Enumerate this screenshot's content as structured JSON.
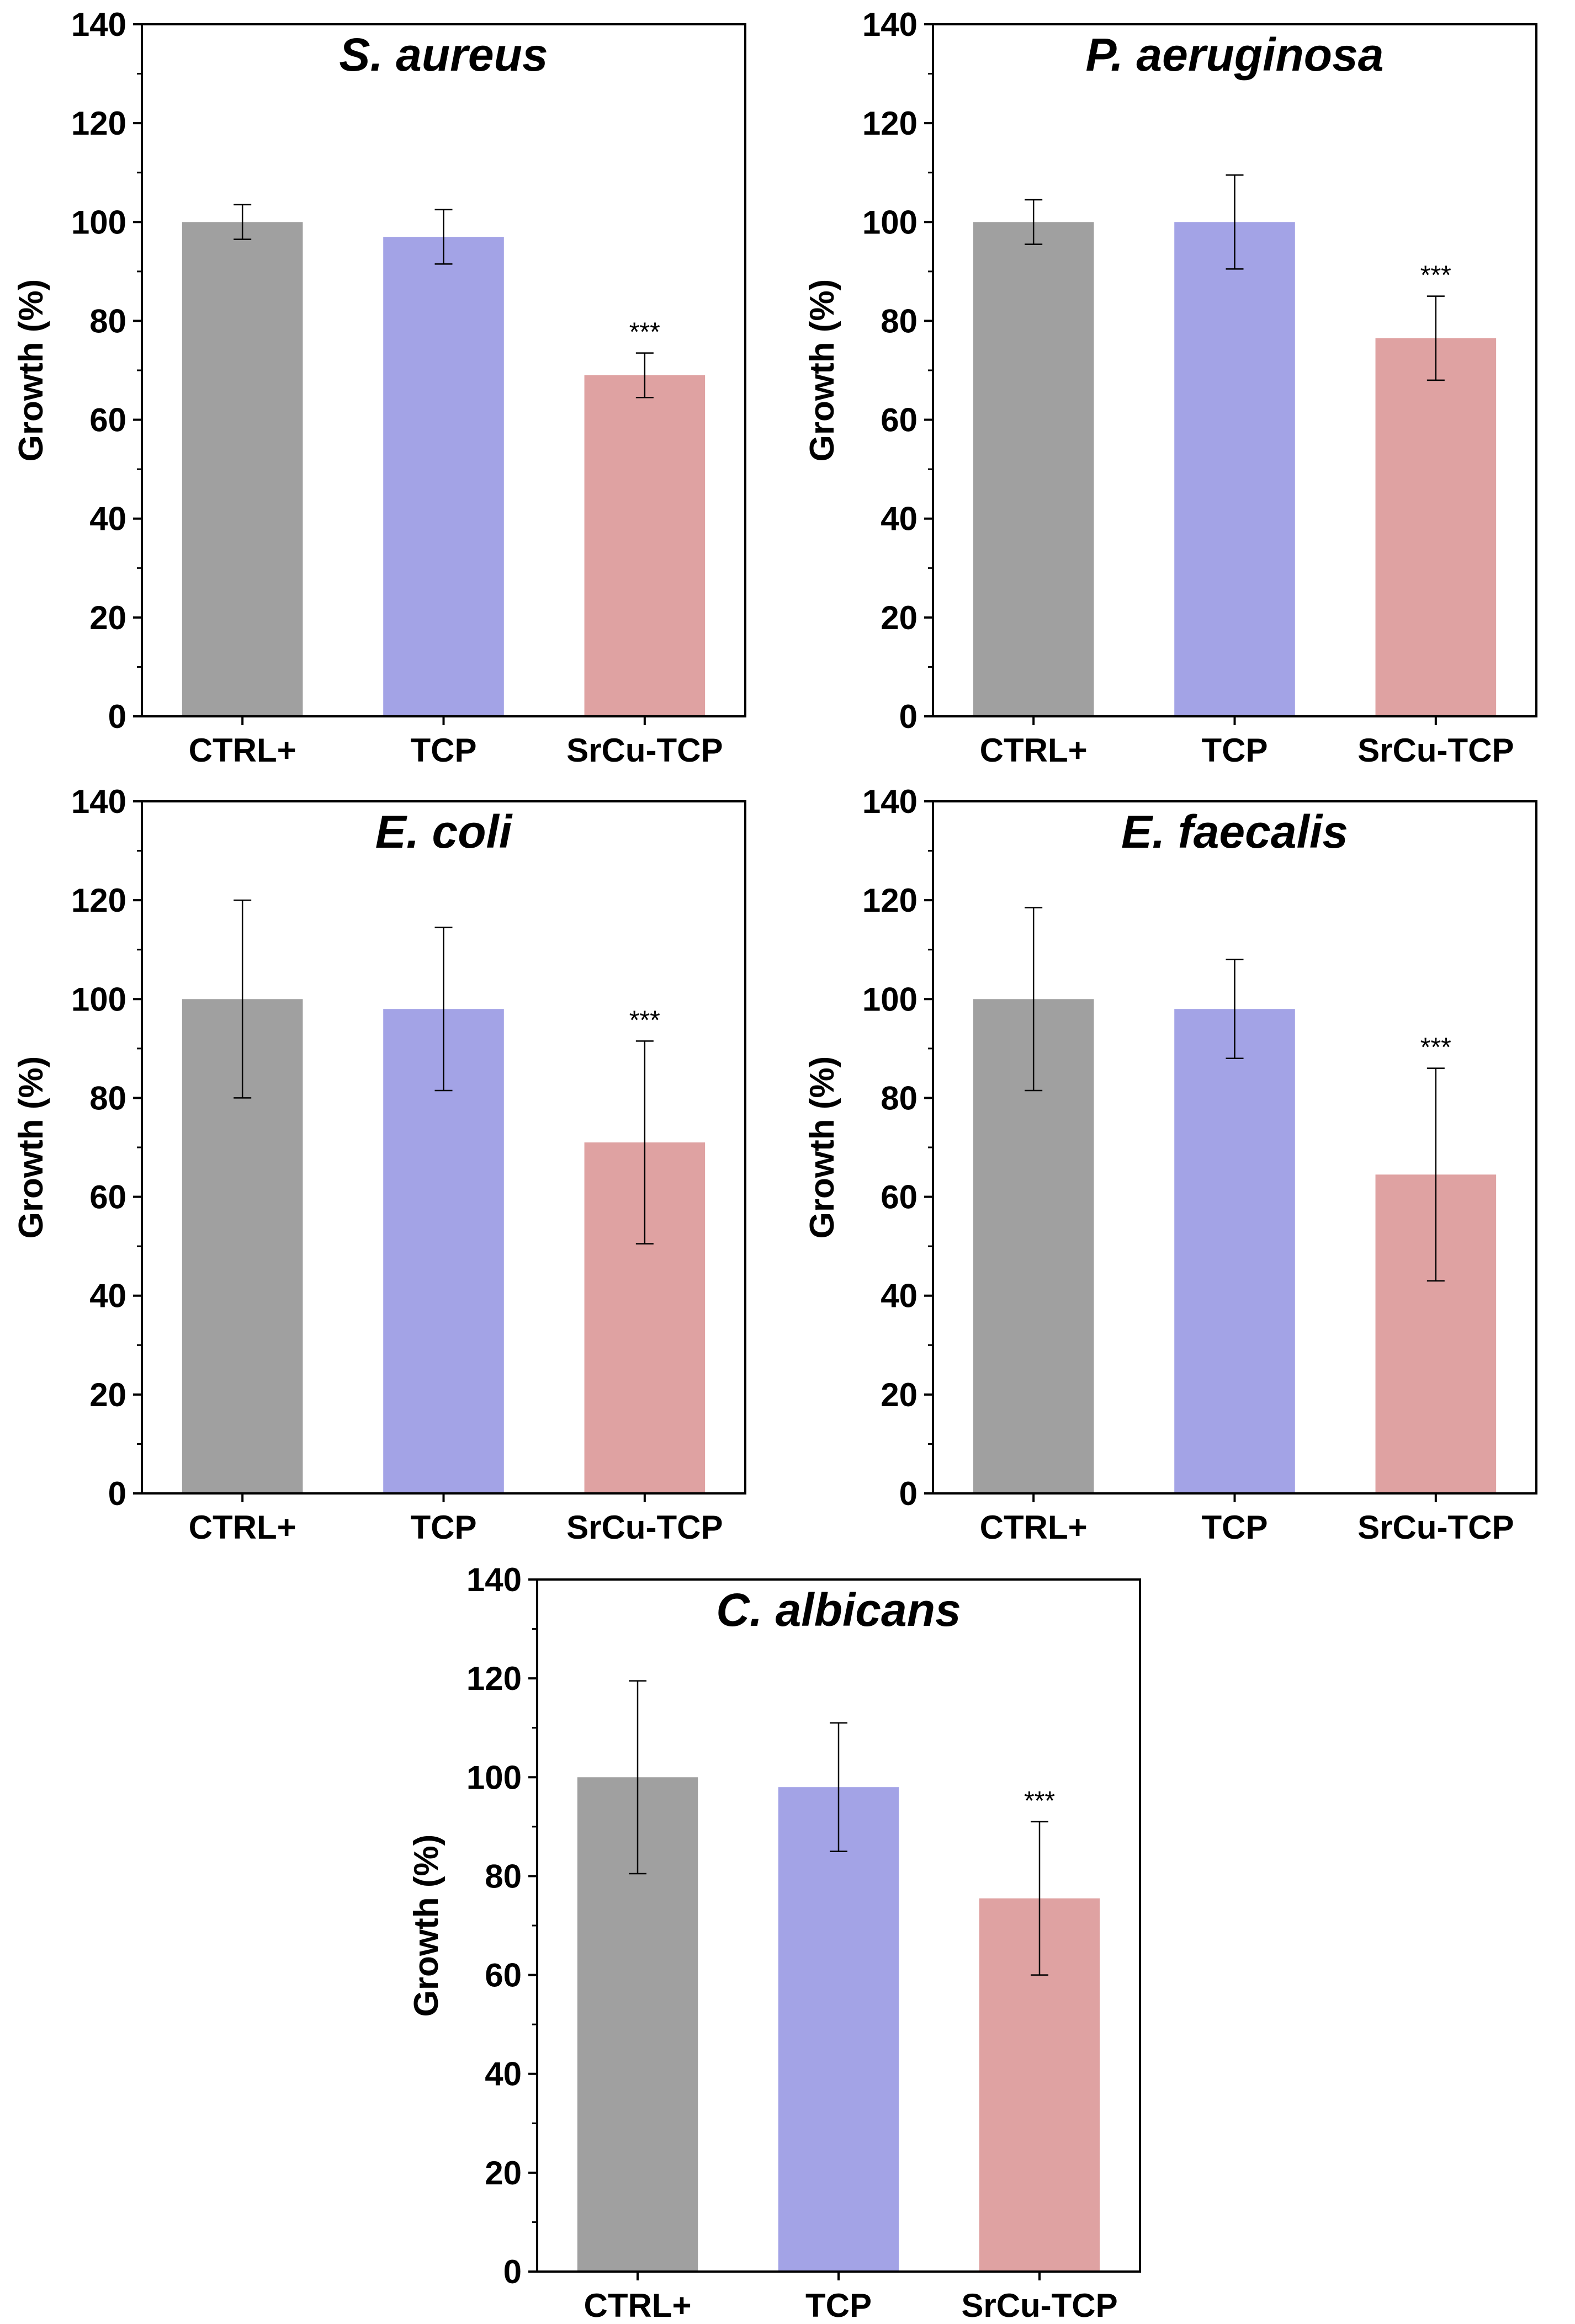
{
  "chart_data": [
    {
      "type": "bar",
      "title": "S. aureus",
      "categories": [
        "CTRL+",
        "TCP",
        "SrCu-TCP"
      ],
      "values": [
        100,
        97,
        69
      ],
      "errors": [
        3.5,
        5.5,
        4.5
      ],
      "annotations": [
        "",
        "",
        "***"
      ],
      "colors": [
        "#a0a0a0",
        "#a3a3e6",
        "#dfa2a2"
      ],
      "xlabel": "",
      "ylabel": "Growth (%)",
      "ylim": [
        0,
        140
      ],
      "yticks": [
        0,
        20,
        40,
        60,
        80,
        100,
        120,
        140
      ]
    },
    {
      "type": "bar",
      "title": "P. aeruginosa",
      "categories": [
        "CTRL+",
        "TCP",
        "SrCu-TCP"
      ],
      "values": [
        100,
        100,
        76.5
      ],
      "errors": [
        4.5,
        9.5,
        8.5
      ],
      "annotations": [
        "",
        "",
        "***"
      ],
      "colors": [
        "#a0a0a0",
        "#a3a3e6",
        "#dfa2a2"
      ],
      "xlabel": "",
      "ylabel": "Growth (%)",
      "ylim": [
        0,
        140
      ],
      "yticks": [
        0,
        20,
        40,
        60,
        80,
        100,
        120,
        140
      ]
    },
    {
      "type": "bar",
      "title": "E. coli",
      "categories": [
        "CTRL+",
        "TCP",
        "SrCu-TCP"
      ],
      "values": [
        100,
        98,
        71
      ],
      "errors": [
        20,
        16.5,
        20.5
      ],
      "annotations": [
        "",
        "",
        "***"
      ],
      "colors": [
        "#a0a0a0",
        "#a3a3e6",
        "#dfa2a2"
      ],
      "xlabel": "",
      "ylabel": "Growth (%)",
      "ylim": [
        0,
        140
      ],
      "yticks": [
        0,
        20,
        40,
        60,
        80,
        100,
        120,
        140
      ]
    },
    {
      "type": "bar",
      "title": "E. faecalis",
      "categories": [
        "CTRL+",
        "TCP",
        "SrCu-TCP"
      ],
      "values": [
        100,
        98,
        64.5
      ],
      "errors": [
        18.5,
        10,
        21.5
      ],
      "annotations": [
        "",
        "",
        "***"
      ],
      "colors": [
        "#a0a0a0",
        "#a3a3e6",
        "#dfa2a2"
      ],
      "xlabel": "",
      "ylabel": "Growth (%)",
      "ylim": [
        0,
        140
      ],
      "yticks": [
        0,
        20,
        40,
        60,
        80,
        100,
        120,
        140
      ]
    },
    {
      "type": "bar",
      "title": "C. albicans",
      "categories": [
        "CTRL+",
        "TCP",
        "SrCu-TCP"
      ],
      "values": [
        100,
        98,
        75.5
      ],
      "errors": [
        19.5,
        13,
        15.5
      ],
      "annotations": [
        "",
        "",
        "***"
      ],
      "colors": [
        "#a0a0a0",
        "#a3a3e6",
        "#dfa2a2"
      ],
      "xlabel": "",
      "ylabel": "Growth (%)",
      "ylim": [
        0,
        140
      ],
      "yticks": [
        0,
        20,
        40,
        60,
        80,
        100,
        120,
        140
      ]
    }
  ]
}
